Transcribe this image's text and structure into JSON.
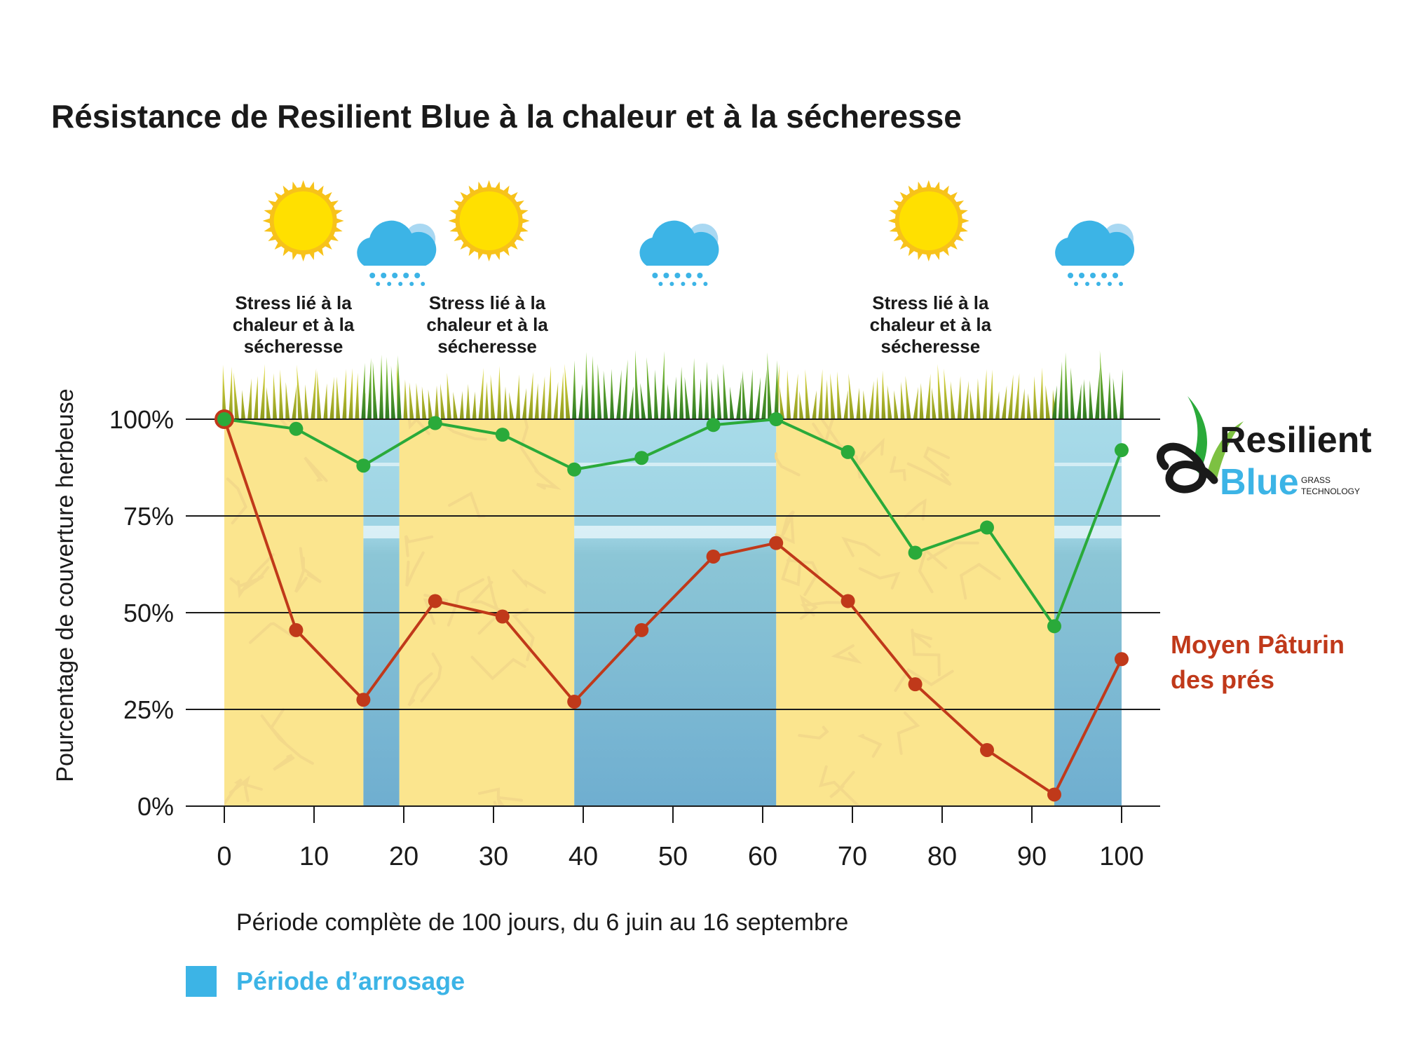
{
  "chart_data": {
    "type": "line",
    "title": "Résistance de Resilient Blue à la chaleur et à la sécheresse",
    "xlabel": "Période complète de 100 jours, du 6 juin au 16 septembre",
    "ylabel": "Pourcentage de couverture herbeuse",
    "xlim": [
      0,
      100
    ],
    "ylim": [
      0,
      100
    ],
    "x_ticks": [
      0,
      10,
      20,
      30,
      40,
      50,
      60,
      70,
      80,
      90,
      100
    ],
    "x_tick_labels": [
      "0",
      "10",
      "20",
      "30",
      "40",
      "50",
      "60",
      "70",
      "80",
      "90",
      "100"
    ],
    "y_ticks": [
      0,
      25,
      50,
      75,
      100
    ],
    "y_tick_labels": [
      "0%",
      "25%",
      "50%",
      "75%",
      "100%"
    ],
    "grid": "horizontal",
    "series": [
      {
        "name": "Resilient Blue",
        "color": "#2aaa3a",
        "x": [
          0,
          8,
          15.5,
          23.5,
          31,
          39,
          46.5,
          54.5,
          61.5,
          69.5,
          77,
          85,
          92.5,
          100
        ],
        "values": [
          100,
          97.5,
          88,
          99,
          96,
          87,
          90,
          98.5,
          100,
          91.5,
          65.5,
          72,
          46.5,
          92
        ]
      },
      {
        "name": "Moyen Pâturin des prés",
        "color": "#c0391a",
        "x": [
          0,
          8,
          15.5,
          23.5,
          31,
          39,
          46.5,
          54.5,
          61.5,
          69.5,
          77,
          85,
          92.5,
          100
        ],
        "values": [
          100,
          45.5,
          27.5,
          53,
          49,
          27,
          45.5,
          64.5,
          68,
          53,
          31.5,
          14.5,
          3,
          38
        ]
      }
    ],
    "watering_periods": [
      [
        15.5,
        19.5
      ],
      [
        39,
        61.5
      ],
      [
        92.5,
        100
      ]
    ],
    "stress_periods": [
      [
        0,
        15.5
      ],
      [
        19.5,
        39
      ],
      [
        61.5,
        92.5
      ]
    ],
    "annotations": [
      {
        "text": [
          "Stress lié à la",
          "chaleur et à la",
          "sécheresse"
        ],
        "x": 7.7
      },
      {
        "text": [
          "Stress lié à la",
          "chaleur et à la",
          "sécheresse"
        ],
        "x": 29.3
      },
      {
        "text": [
          "Stress lié à la",
          "chaleur et à la",
          "sécheresse"
        ],
        "x": 78.7
      }
    ],
    "weather_icons": [
      {
        "type": "sun-icon",
        "x": 8.8
      },
      {
        "type": "cloud-rain-icon",
        "x": 19
      },
      {
        "type": "sun-icon",
        "x": 29.5
      },
      {
        "type": "cloud-rain-icon",
        "x": 50.5
      },
      {
        "type": "sun-icon",
        "x": 78.5
      },
      {
        "type": "cloud-rain-icon",
        "x": 96.8
      }
    ],
    "legend": {
      "label": "Période d’arrosage",
      "color": "#3cb4e6",
      "placement": "bottom-left"
    },
    "series_labels": {
      "resilient": {
        "logo_word_1": "Resilient",
        "logo_word_2": "Blue",
        "logo_sub_1": "GRASS",
        "logo_sub_2": "TECHNOLOGY"
      },
      "meadow": [
        "Moyen Pâturin",
        "des prés"
      ]
    }
  }
}
